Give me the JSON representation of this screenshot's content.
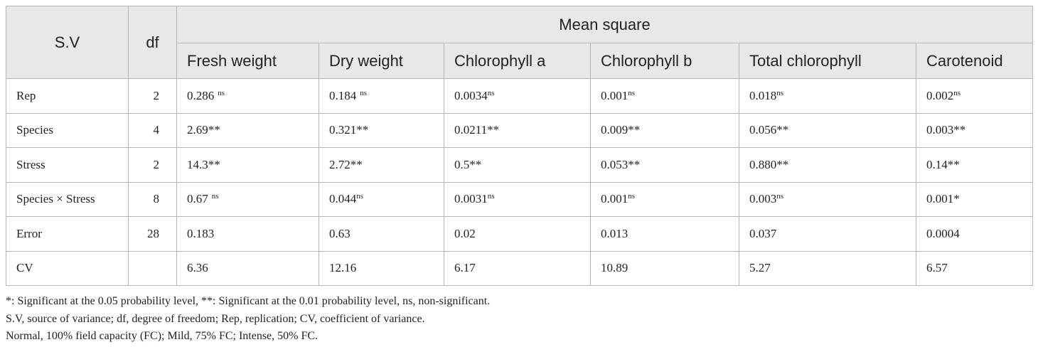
{
  "table": {
    "header": {
      "sv": "S.V",
      "df": "df",
      "group": "Mean square",
      "columns": [
        "Fresh weight",
        "Dry weight",
        "Chlorophyll a",
        "Chlorophyll b",
        "Total chlorophyll",
        "Carotenoid"
      ]
    },
    "rows": [
      {
        "label": "Rep",
        "df": "2",
        "cells": [
          {
            "text": "0.286",
            "sup": "ns",
            "gap": true
          },
          {
            "text": "0.184",
            "sup": "ns",
            "gap": true
          },
          {
            "text": "0.0034",
            "sup": "ns"
          },
          {
            "text": "0.001",
            "sup": "ns"
          },
          {
            "text": "0.018",
            "sup": "ns"
          },
          {
            "text": "0.002",
            "sup": "ns"
          }
        ]
      },
      {
        "label": "Species",
        "df": "4",
        "cells": [
          {
            "text": "2.69**"
          },
          {
            "text": "0.321**"
          },
          {
            "text": "0.0211**"
          },
          {
            "text": "0.009**"
          },
          {
            "text": "0.056**"
          },
          {
            "text": "0.003**"
          }
        ]
      },
      {
        "label": "Stress",
        "df": "2",
        "cells": [
          {
            "text": "14.3**"
          },
          {
            "text": "2.72**"
          },
          {
            "text": "0.5**"
          },
          {
            "text": "0.053**"
          },
          {
            "text": "0.880**"
          },
          {
            "text": "0.14**"
          }
        ]
      },
      {
        "label": "Species × Stress",
        "df": "8",
        "cells": [
          {
            "text": "0.67",
            "sup": "ns",
            "gap": true
          },
          {
            "text": "0.044",
            "sup": "ns"
          },
          {
            "text": "0.0031",
            "sup": "ns"
          },
          {
            "text": "0.001",
            "sup": "ns"
          },
          {
            "text": "0.003",
            "sup": "ns"
          },
          {
            "text": "0.001*"
          }
        ]
      },
      {
        "label": "Error",
        "df": "28",
        "cells": [
          {
            "text": "0.183"
          },
          {
            "text": "0.63"
          },
          {
            "text": "0.02"
          },
          {
            "text": "0.013"
          },
          {
            "text": "0.037"
          },
          {
            "text": "0.0004"
          }
        ]
      },
      {
        "label": "CV",
        "cells": [
          {
            "text": "6.36"
          },
          {
            "text": "12.16"
          },
          {
            "text": "6.17"
          },
          {
            "text": "10.89"
          },
          {
            "text": "5.27"
          },
          {
            "text": "6.57"
          }
        ]
      }
    ],
    "notes": [
      "*: Significant at the 0.05 probability level, **: Significant at the 0.01 probability level, ns, non-significant.",
      "S.V, source of variance; df, degree of freedom; Rep, replication; CV, coefficient of variance.",
      "Normal, 100% field capacity (FC); Mild, 75% FC; Intense, 50% FC."
    ]
  }
}
